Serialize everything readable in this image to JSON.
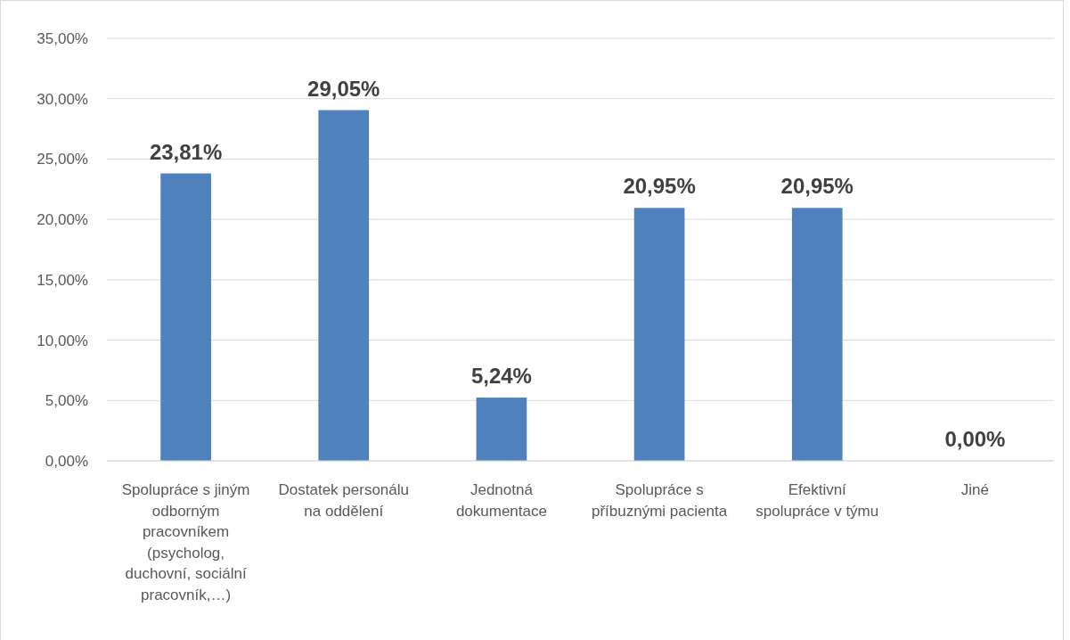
{
  "chart_data": {
    "type": "bar",
    "categories": [
      "Spolupráce s jiným odborným pracovníkem (psycholog, duchovní, sociální pracovník,…)",
      "Dostatek personálu na oddělení",
      "Jednotná dokumentace",
      "Spolupráce s příbuznými pacienta",
      "Efektivní spolupráce v týmu",
      "Jiné"
    ],
    "values": [
      23.81,
      29.05,
      5.24,
      20.95,
      20.95,
      0
    ],
    "value_labels": [
      "23,81%",
      "29,05%",
      "5,24%",
      "20,95%",
      "20,95%",
      "0,00%"
    ],
    "color": "#4f81bd",
    "ylim": [
      0,
      35
    ],
    "yticks": [
      {
        "value": 0,
        "label": "0,00%"
      },
      {
        "value": 5,
        "label": "5,00%"
      },
      {
        "value": 10,
        "label": "10,00%"
      },
      {
        "value": 15,
        "label": "15,00%"
      },
      {
        "value": 20,
        "label": "20,00%"
      },
      {
        "value": 25,
        "label": "25,00%"
      },
      {
        "value": 30,
        "label": "30,00%"
      },
      {
        "value": 35,
        "label": "35,00%"
      }
    ],
    "grid": "y"
  }
}
